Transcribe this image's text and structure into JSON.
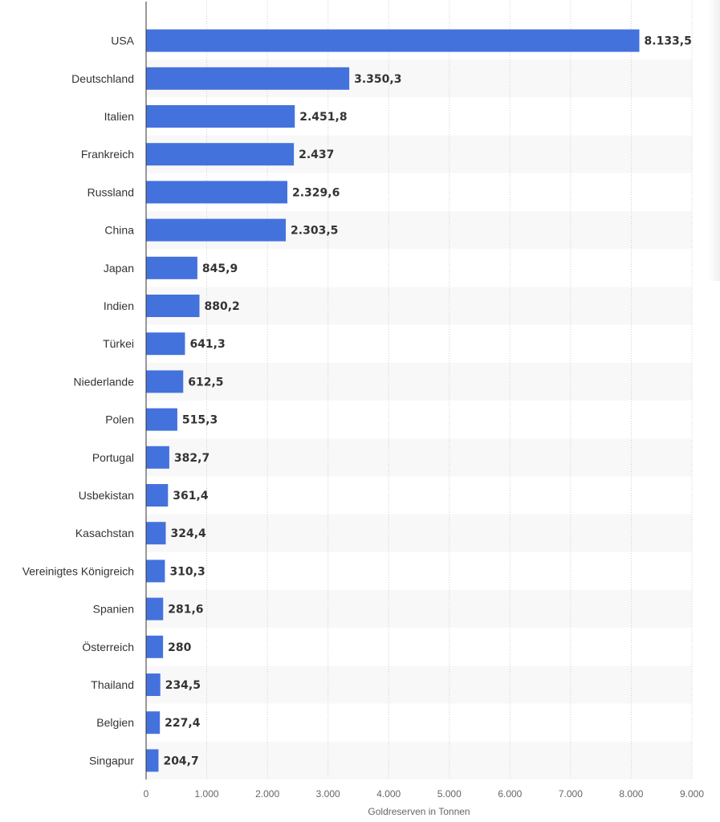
{
  "chart_data": {
    "type": "bar",
    "orientation": "horizontal",
    "categories": [
      "USA",
      "Deutschland",
      "Italien",
      "Frankreich",
      "Russland",
      "China",
      "Japan",
      "Indien",
      "Türkei",
      "Niederlande",
      "Polen",
      "Portugal",
      "Usbekistan",
      "Kasachstan",
      "Vereinigtes Königreich",
      "Spanien",
      "Österreich",
      "Thailand",
      "Belgien",
      "Singapur"
    ],
    "values": [
      8133.5,
      3350.3,
      2451.8,
      2437,
      2329.6,
      2303.5,
      845.9,
      880.2,
      641.3,
      612.5,
      515.3,
      382.7,
      361.4,
      324.4,
      310.3,
      281.6,
      280,
      234.5,
      227.4,
      204.7
    ],
    "value_labels": [
      "8.133,5",
      "3.350,3",
      "2.451,8",
      "2.437",
      "2.329,6",
      "2.303,5",
      "845,9",
      "880,2",
      "641,3",
      "612,5",
      "515,3",
      "382,7",
      "361,4",
      "324,4",
      "310,3",
      "281,6",
      "280",
      "234,5",
      "227,4",
      "204,7"
    ],
    "xlim": [
      0,
      9000
    ],
    "xticks": [
      0,
      1000,
      2000,
      3000,
      4000,
      5000,
      6000,
      7000,
      8000,
      9000
    ],
    "xtick_labels": [
      "0",
      "1.000",
      "2.000",
      "3.000",
      "4.000",
      "5.000",
      "6.000",
      "7.000",
      "8.000",
      "9.000"
    ],
    "xlabel": "Goldreserven in Tonnen",
    "ylabel": "",
    "title": "",
    "grid": "vertical dotted",
    "legend": "none",
    "bar_color": "#4472dd",
    "band_color": "#f8f8f8"
  },
  "ui": {
    "panel_shadow": "present"
  }
}
